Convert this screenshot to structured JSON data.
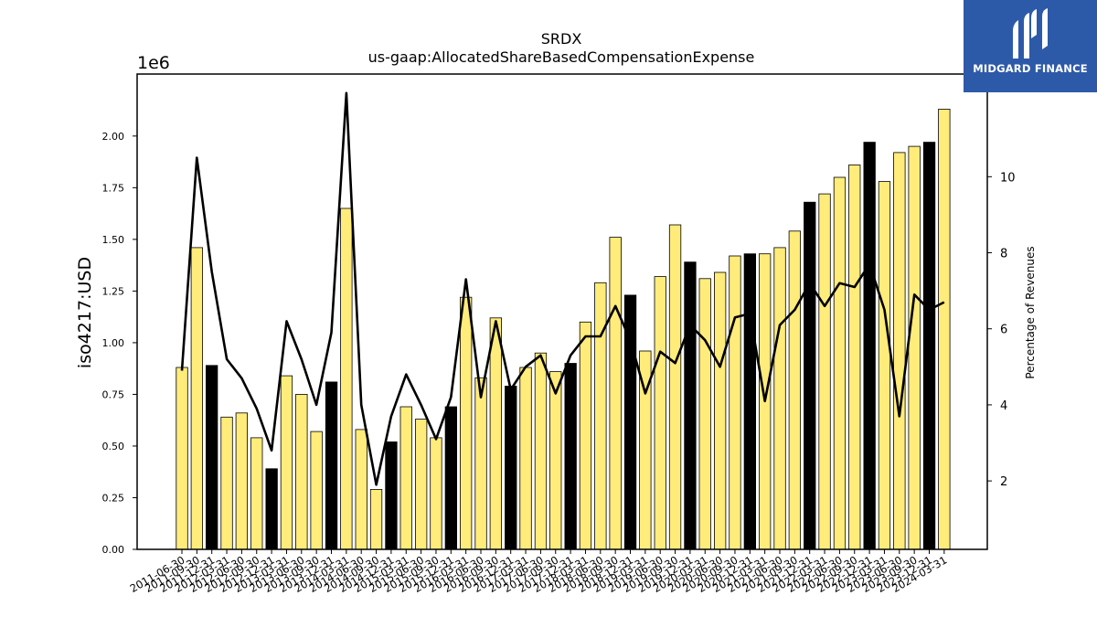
{
  "brand": {
    "name": "MIDGARD FINANCE",
    "color": "#2d5aa8",
    "icon": "midgard-logo-icon"
  },
  "chart_data": {
    "type": "bar",
    "title": "SRDX",
    "subtitle": "us-gaap:AllocatedShareBasedCompensationExpense",
    "ylabel": "iso4217:USD",
    "y_offset_label": "1e6",
    "y2label": "Percentage of Revenues",
    "ylim": [
      0,
      2.3
    ],
    "y2lim": [
      0.2,
      12.7
    ],
    "yticks": [
      "0.00",
      "0.25",
      "0.50",
      "0.75",
      "1.00",
      "1.25",
      "1.50",
      "1.75",
      "2.00"
    ],
    "y2ticks": [
      "2",
      "4",
      "6",
      "8",
      "10"
    ],
    "colors": {
      "quarter": "#ffec7a",
      "fiscal_year_end": "#000000",
      "line": "#000000"
    },
    "categories": [
      "2011-06-30",
      "2011-09-30",
      "2011-12-31",
      "2012-03-31",
      "2012-06-30",
      "2012-09-30",
      "2012-12-31",
      "2013-03-31",
      "2013-06-30",
      "2013-09-30",
      "2013-12-31",
      "2014-03-31",
      "2014-06-30",
      "2014-09-30",
      "2014-12-31",
      "2015-03-31",
      "2015-06-30",
      "2015-09-30",
      "2015-12-31",
      "2016-03-31",
      "2016-06-30",
      "2016-09-30",
      "2016-12-31",
      "2017-03-31",
      "2017-06-30",
      "2017-09-30",
      "2017-12-31",
      "2018-03-31",
      "2018-06-30",
      "2018-09-30",
      "2018-12-31",
      "2019-03-31",
      "2019-06-30",
      "2019-09-30",
      "2019-12-31",
      "2020-03-31",
      "2020-06-30",
      "2020-09-30",
      "2020-12-31",
      "2021-03-31",
      "2021-06-30",
      "2021-09-30",
      "2021-12-31",
      "2022-03-31",
      "2022-06-30",
      "2022-09-30",
      "2022-12-31",
      "2023-03-31",
      "2023-06-30",
      "2023-09-30",
      "2023-12-31",
      "2024-03-31"
    ],
    "visible_tick_labels": [
      "2011-06-30",
      "2011-09-30",
      "2011-12-31",
      "2012-03-31",
      "2012-06-30",
      "2012-09-30",
      "2012-12-31",
      "2013-03-31",
      "2013-06-30",
      "2013-09-30",
      "2013-12-31",
      "2014-03-31",
      "2014-06-30",
      "2014-09-30",
      "2014-12-31",
      "2015-03-31",
      "2015-06-30",
      "2015-09-30",
      "2015-12-31",
      "2016-03-31",
      "2016-06-30",
      "2016-09-30",
      "2016-12-31",
      "2017-03-31",
      "2017-06-30",
      "2017-09-30",
      "2017-12-31",
      "2018-03-31",
      "2018-06-30",
      "2018-09-30",
      "2018-12-31",
      "2019-03-31",
      "2019-06-30",
      "2019-09-30",
      "2019-12-31",
      "2020-03-31",
      "2020-06-30",
      "2020-09-30",
      "2020-12-31",
      "2021-03-31",
      "2021-06-30",
      "2021-09-30",
      "2021-12-31",
      "2022-03-31",
      "2022-06-30",
      "2022-09-30",
      "2022-12-31",
      "2023-03-31",
      "2023-06-30",
      "2023-09-30",
      "2023-12-31",
      "2024-03-31"
    ],
    "series": [
      {
        "type": "bar",
        "values": [
          0.88,
          1.46,
          0.89,
          0.64,
          0.66,
          0.54,
          0.39,
          0.84,
          0.75,
          0.57,
          0.81,
          1.65,
          0.58,
          0.29,
          0.52,
          0.69,
          0.63,
          0.54,
          0.69,
          1.22,
          0.83,
          1.12,
          0.79,
          0.88,
          0.95,
          0.86,
          0.9,
          1.1,
          1.29,
          1.51,
          1.23,
          0.96,
          1.32,
          1.57,
          1.39,
          1.31,
          1.34,
          1.42,
          1.43,
          1.43,
          1.46,
          1.54,
          1.68,
          1.72,
          1.8,
          1.86,
          1.97,
          1.78,
          1.92,
          1.95,
          1.97,
          2.13
        ],
        "highlight": [
          false,
          false,
          true,
          false,
          false,
          false,
          true,
          false,
          false,
          false,
          true,
          false,
          false,
          false,
          true,
          false,
          false,
          false,
          true,
          false,
          false,
          false,
          true,
          false,
          false,
          false,
          true,
          false,
          false,
          false,
          true,
          false,
          false,
          false,
          true,
          false,
          false,
          false,
          true,
          false,
          false,
          false,
          true,
          false,
          false,
          false,
          true,
          false,
          false,
          false,
          true,
          false
        ]
      },
      {
        "type": "line",
        "axis": "y2",
        "values": [
          4.9,
          10.5,
          7.5,
          5.2,
          4.7,
          3.9,
          2.8,
          6.2,
          5.2,
          4.0,
          5.9,
          12.2,
          4.0,
          1.9,
          3.7,
          4.8,
          4.0,
          3.1,
          4.2,
          7.3,
          4.2,
          6.2,
          4.4,
          5.0,
          5.3,
          4.3,
          5.3,
          5.8,
          5.8,
          6.6,
          5.7,
          4.3,
          5.4,
          5.1,
          6.1,
          5.7,
          5.0,
          6.3,
          6.4,
          4.1,
          6.1,
          6.5,
          7.2,
          6.6,
          7.2,
          7.1,
          7.7,
          6.5,
          3.7,
          6.9,
          6.5,
          6.7
        ]
      }
    ]
  }
}
